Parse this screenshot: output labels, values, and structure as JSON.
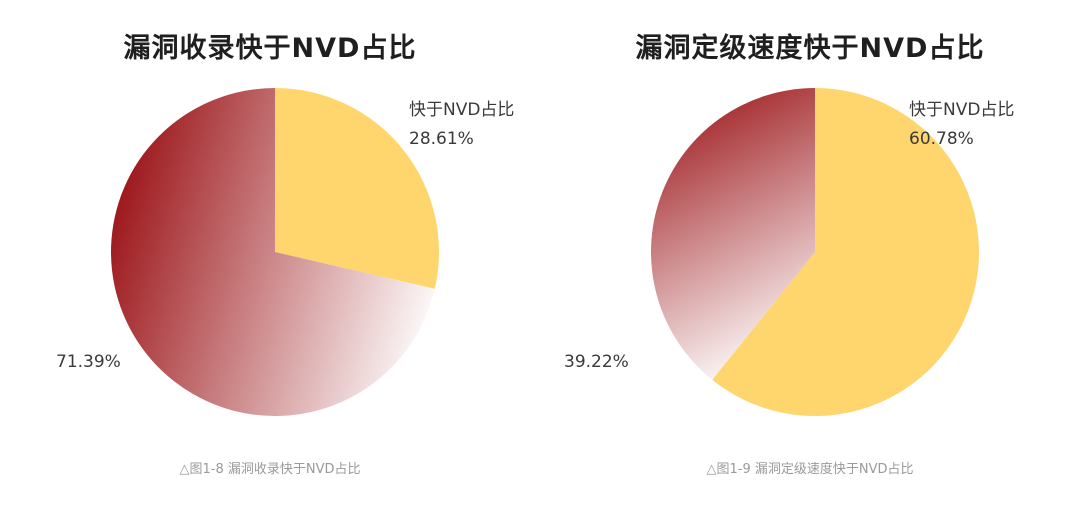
{
  "colors": {
    "highlight": "#FFD56E",
    "dark_red": "#9E1B1F",
    "light_fade": "#FFFFFF"
  },
  "chart_data": [
    {
      "type": "pie",
      "title": "漏洞收录快于NVD占比",
      "caption": "△图1-8 漏洞收录快于NVD占比",
      "slices": [
        {
          "label": "快于NVD占比",
          "value": 28.61,
          "display": "28.61%",
          "color": "#FFD56E"
        },
        {
          "label": "",
          "value": 71.39,
          "display": "71.39%",
          "color": "gradient-red"
        }
      ]
    },
    {
      "type": "pie",
      "title": "漏洞定级速度快于NVD占比",
      "caption": "△图1-9 漏洞定级速度快于NVD占比",
      "slices": [
        {
          "label": "快于NVD占比",
          "value": 60.78,
          "display": "60.78%",
          "color": "#FFD56E"
        },
        {
          "label": "",
          "value": 39.22,
          "display": "39.22%",
          "color": "gradient-red"
        }
      ]
    }
  ]
}
